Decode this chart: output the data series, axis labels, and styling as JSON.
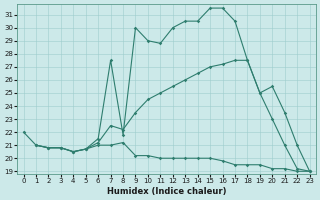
{
  "xlabel": "Humidex (Indice chaleur)",
  "xlim": [
    -0.5,
    23.5
  ],
  "ylim": [
    18.8,
    31.8
  ],
  "yticks": [
    19,
    20,
    21,
    22,
    23,
    24,
    25,
    26,
    27,
    28,
    29,
    30,
    31
  ],
  "xticks": [
    0,
    1,
    2,
    3,
    4,
    5,
    6,
    7,
    8,
    9,
    10,
    11,
    12,
    13,
    14,
    15,
    16,
    17,
    18,
    19,
    20,
    21,
    22,
    23
  ],
  "bg_color": "#cce9e9",
  "line_color": "#2e7d6e",
  "line1_x": [
    0,
    1,
    2,
    3,
    4,
    5,
    6,
    7,
    8,
    9,
    10,
    11,
    12,
    13,
    14,
    15,
    16,
    17,
    18,
    19,
    20,
    21,
    22,
    23
  ],
  "line1_y": [
    22.0,
    21.0,
    20.8,
    20.8,
    20.5,
    20.7,
    21.0,
    21.0,
    21.2,
    20.2,
    20.2,
    20.0,
    20.0,
    20.0,
    20.0,
    20.0,
    19.8,
    19.5,
    19.5,
    19.5,
    19.2,
    19.2,
    19.0,
    19.0
  ],
  "line2_x": [
    1,
    2,
    3,
    4,
    5,
    6,
    7,
    8,
    9,
    10,
    11,
    12,
    13,
    14,
    15,
    16,
    17,
    18,
    19,
    20,
    21,
    22,
    23
  ],
  "line2_y": [
    21.0,
    20.8,
    20.8,
    20.5,
    20.7,
    21.2,
    22.5,
    22.2,
    23.5,
    24.5,
    25.0,
    25.5,
    26.0,
    26.5,
    27.0,
    27.2,
    27.5,
    27.5,
    25.0,
    25.5,
    23.5,
    21.0,
    19.0
  ],
  "line3_x": [
    1,
    2,
    3,
    4,
    5,
    6,
    7,
    8,
    9,
    10,
    11,
    12,
    13,
    14,
    15,
    16,
    17,
    18,
    19,
    20,
    21,
    22,
    23
  ],
  "line3_y": [
    21.0,
    20.8,
    20.8,
    20.5,
    20.7,
    21.5,
    27.5,
    21.8,
    30.0,
    29.0,
    28.8,
    30.0,
    30.5,
    30.5,
    31.5,
    31.5,
    30.5,
    27.5,
    25.0,
    23.0,
    21.0,
    19.2,
    19.0
  ]
}
